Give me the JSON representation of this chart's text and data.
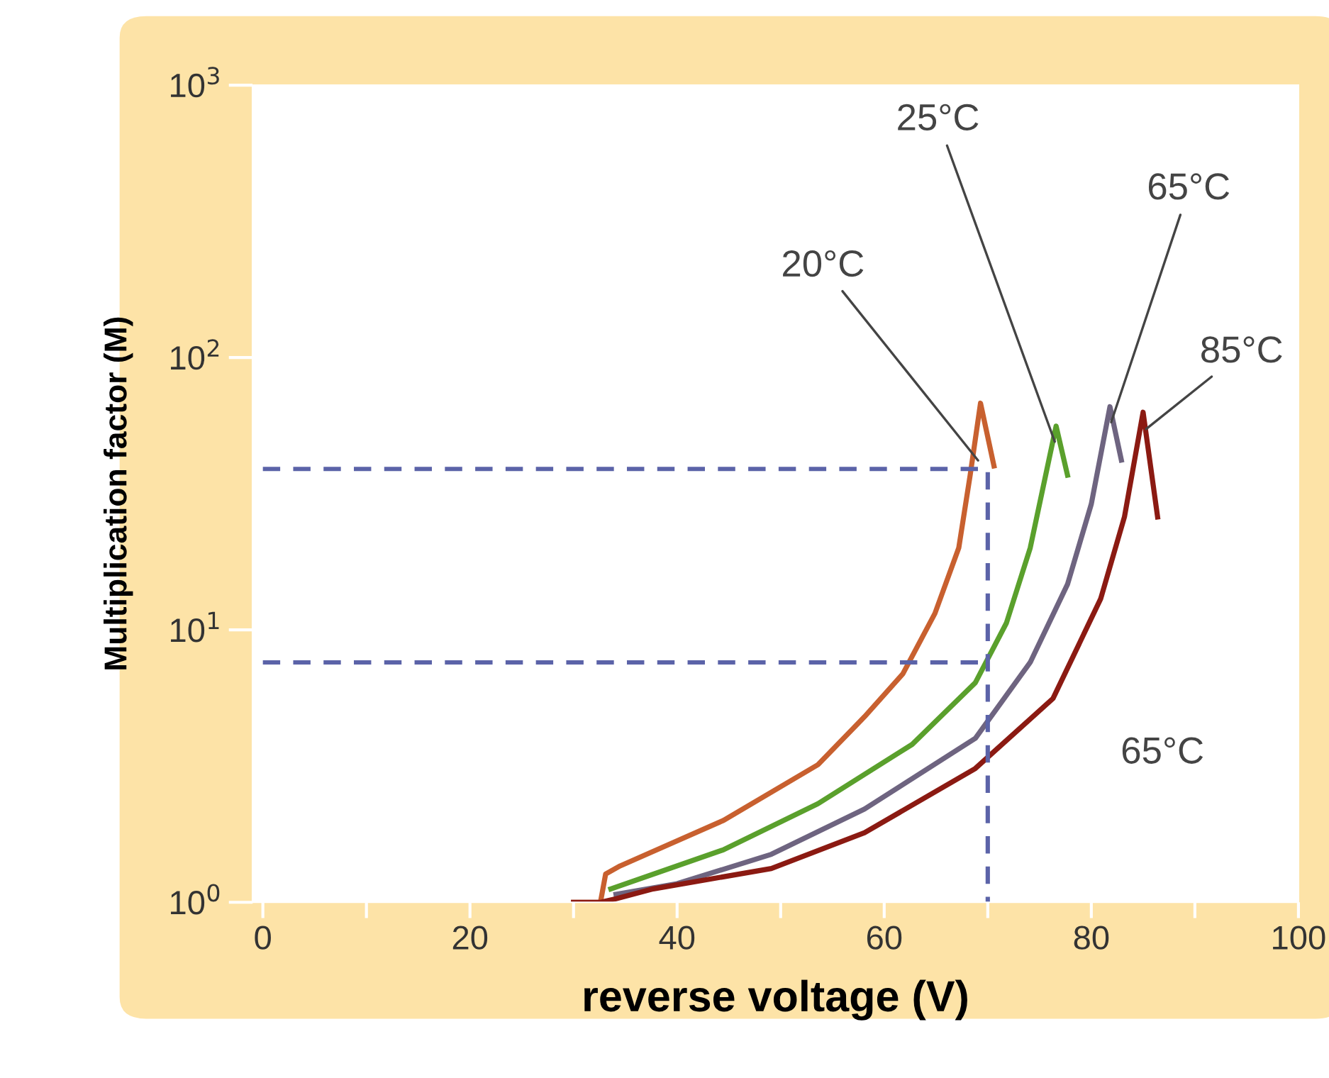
{
  "chart_data": {
    "type": "line",
    "xlabel": "reverse voltage (V)",
    "ylabel": "Multiplication factor (M)",
    "log": "y",
    "xlim": [
      -1,
      100
    ],
    "ylim": [
      1,
      1000
    ],
    "xticks": [
      0,
      {
        "value": 10,
        "label": null
      },
      20,
      {
        "value": 30,
        "label": null
      },
      40,
      {
        "value": 50,
        "label": null
      },
      60,
      {
        "value": 70,
        "label": null
      },
      80,
      {
        "value": 90,
        "label": null
      },
      100
    ],
    "yticks": [
      {
        "value": 1,
        "label": "10$^{0}$"
      },
      {
        "value": 10,
        "label": "10$^{1}$"
      },
      {
        "value": 100,
        "label": "10$^{2}$"
      },
      {
        "value": 1000,
        "label": "10$^{3}$"
      }
    ],
    "grid": false,
    "legend": false,
    "series": [
      {
        "name": "20°C",
        "color": "#c8602f",
        "x": [
          30,
          32.6,
          33.1,
          34.5,
          44.5,
          53.6,
          58.1,
          61.8,
          64.9,
          67.2,
          68.3,
          69.3,
          70.6
        ],
        "values": [
          1.0,
          1.0,
          1.27,
          1.36,
          2.0,
          3.2,
          4.8,
          6.9,
          11.5,
          20,
          37,
          68,
          40
        ]
      },
      {
        "name": "25°C",
        "color": "#5aa02c",
        "x": [
          33.6,
          44.5,
          53.6,
          62.7,
          68.8,
          71.8,
          74.1,
          75.9,
          76.6,
          77.7
        ],
        "values": [
          1.12,
          1.56,
          2.3,
          3.8,
          6.4,
          10.6,
          20,
          42,
          56,
          37
        ]
      },
      {
        "name": "65°C",
        "color": "#6e6480",
        "x": [
          34.1,
          40,
          49.1,
          58.1,
          68.8,
          74.1,
          77.7,
          80,
          81.8,
          82.9
        ],
        "values": [
          1.07,
          1.17,
          1.5,
          2.2,
          4.0,
          7.6,
          14.7,
          29,
          66,
          42
        ]
      },
      {
        "name": "85°C",
        "color": "#8b1a12",
        "x": [
          30,
          32.6,
          34.1,
          37.7,
          49.1,
          58.1,
          68.8,
          76.3,
          80.9,
          83.2,
          85,
          86.4
        ],
        "values": [
          1.0,
          1.0,
          1.03,
          1.12,
          1.33,
          1.8,
          3.1,
          5.6,
          13,
          26,
          63,
          26
        ]
      },
      {
        "color": "#5b63a8",
        "line_style": "dashed",
        "x": [
          0,
          70,
          70
        ],
        "values": [
          39,
          39,
          1
        ]
      },
      {
        "color": "#5b63a8",
        "line_style": "dashed",
        "x": [
          0,
          70
        ],
        "values": [
          7.6,
          7.6
        ]
      }
    ],
    "annotations": [
      "65°C"
    ]
  }
}
